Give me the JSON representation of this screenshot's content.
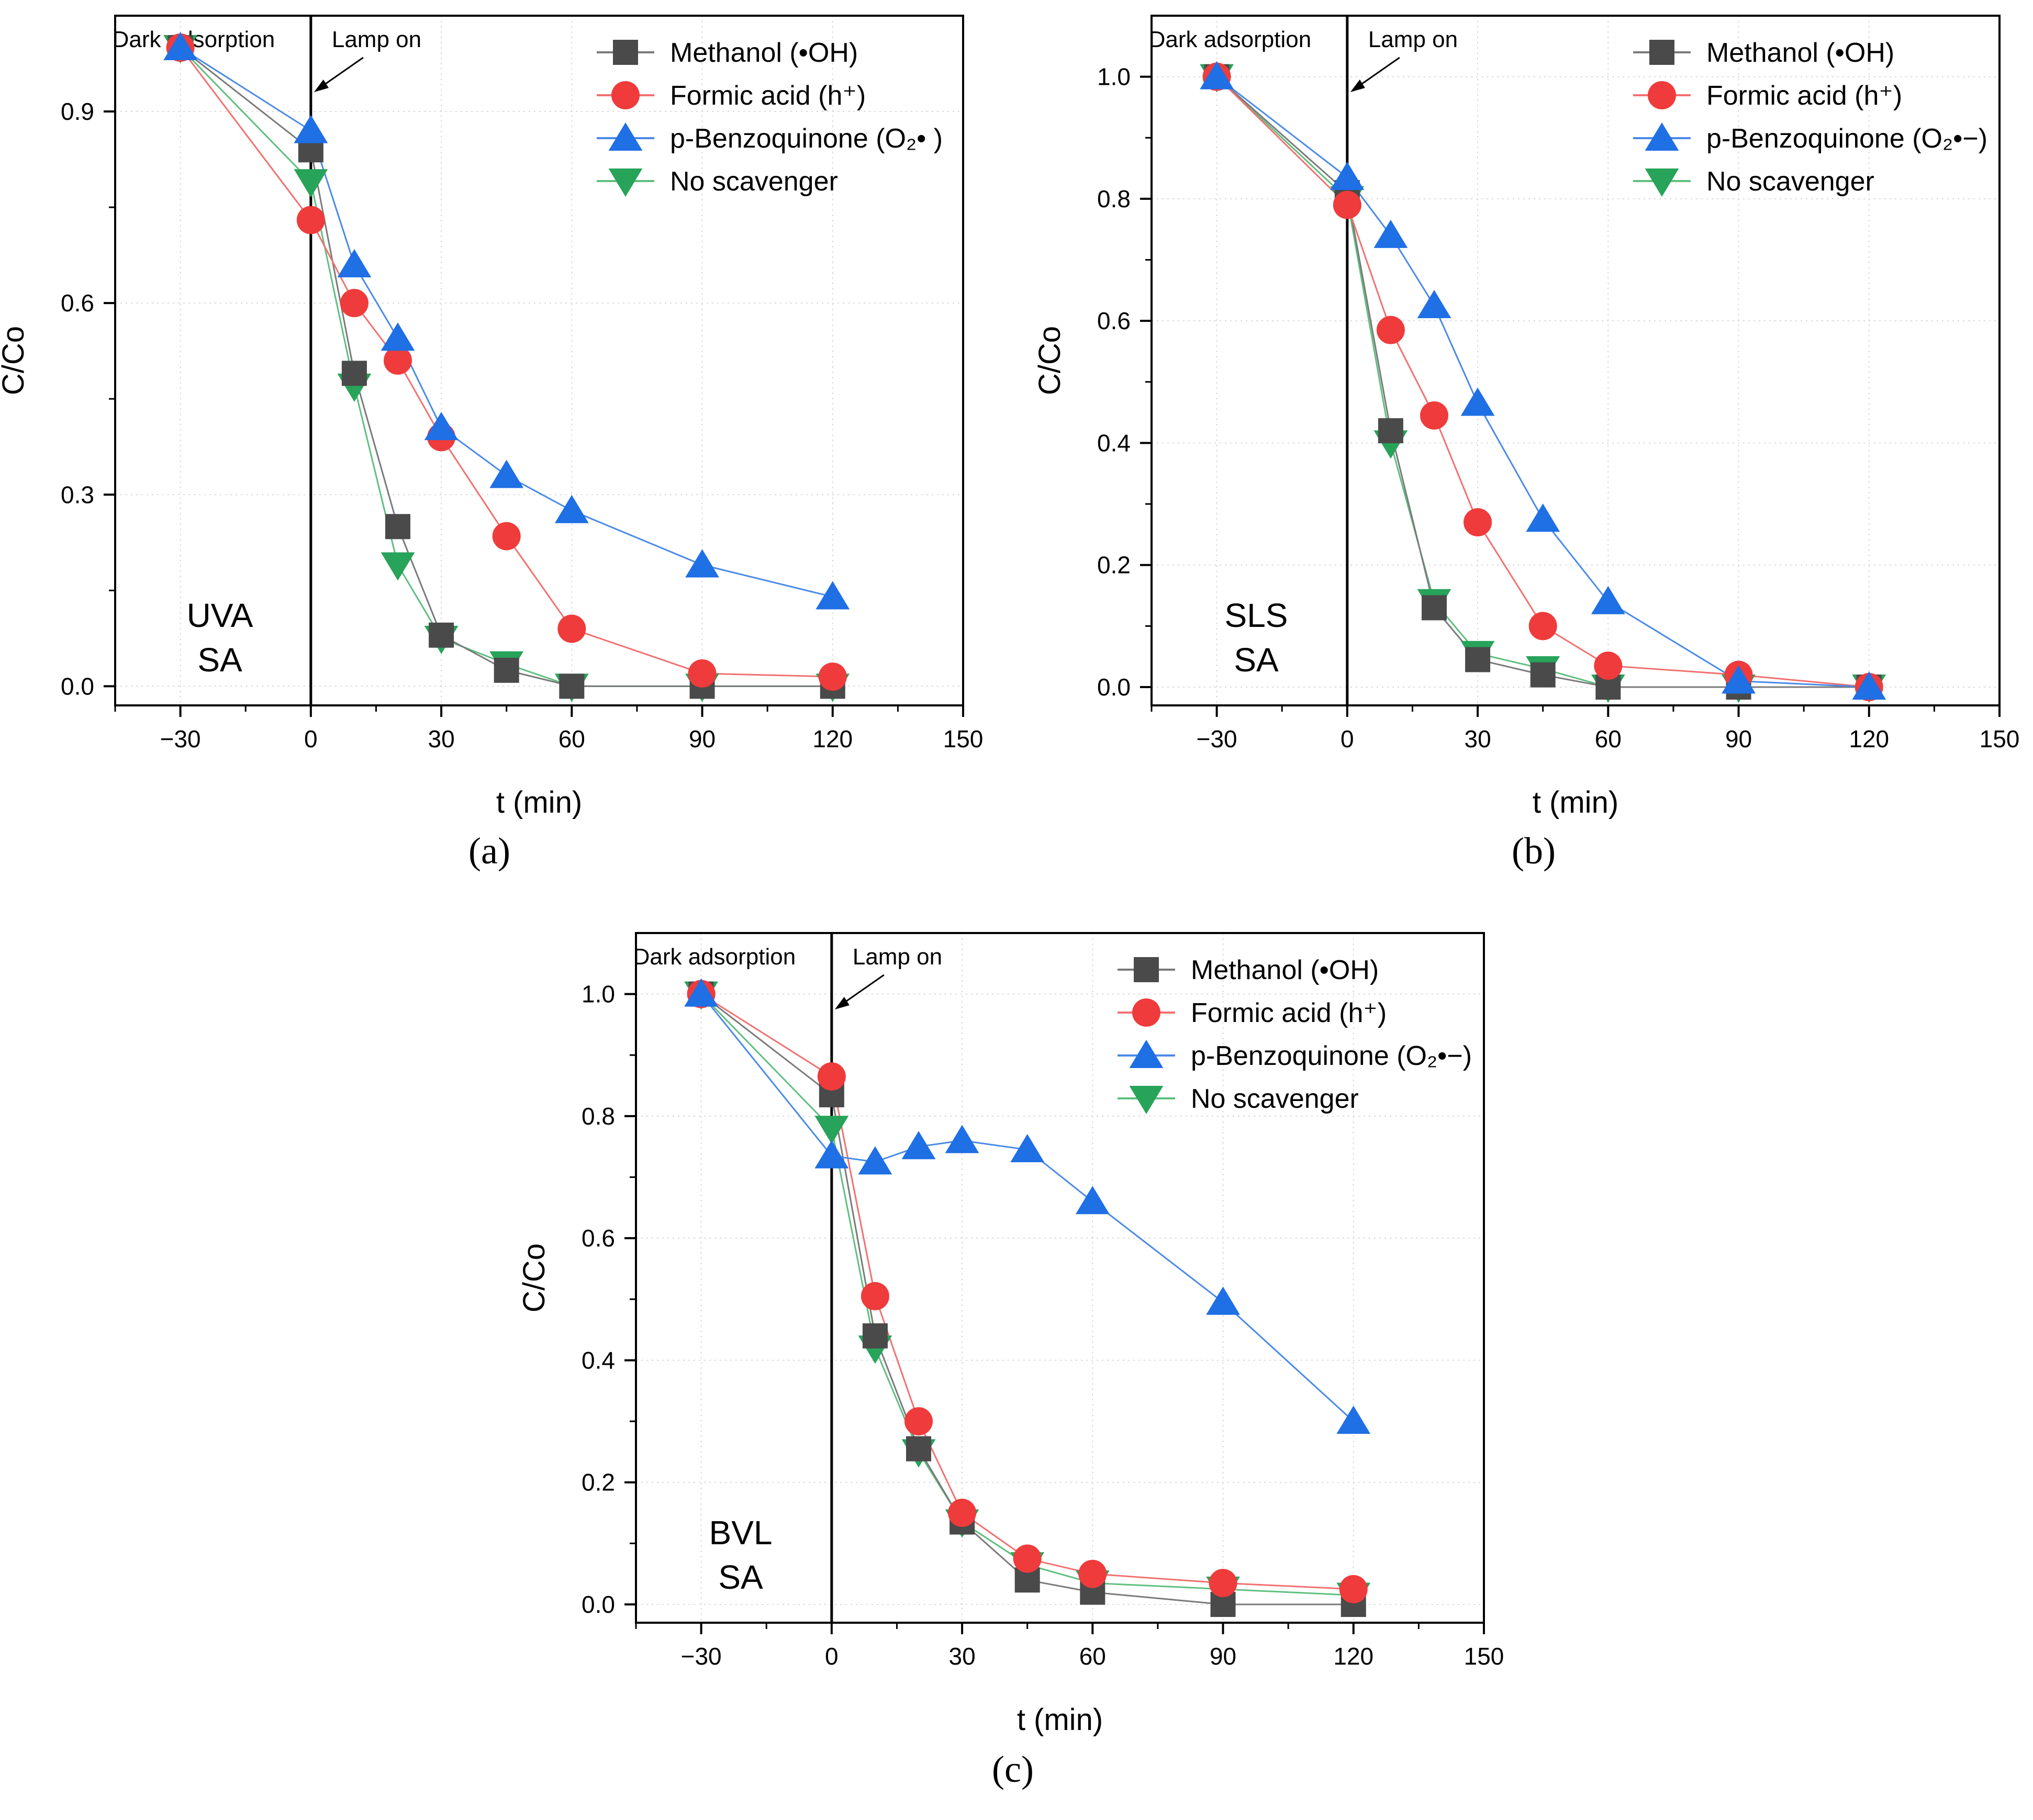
{
  "colors": {
    "methanol": "#4a4a4a",
    "formic": "#ef3b3b",
    "benzoquinone": "#1f6fe5",
    "none": "#27a35a",
    "methanol_line": "#7a7a7a",
    "formic_line": "#f27070",
    "benzoquinone_line": "#4a8ae8",
    "none_line": "#5fbf80"
  },
  "chart_data": [
    {
      "id": "a",
      "type": "line",
      "panel_label": "a",
      "condition": [
        "UVA",
        "SA"
      ],
      "xlabel": "t (min)",
      "ylabel": "C/Co",
      "xlim": [
        -45,
        150
      ],
      "ylim": [
        -0.03,
        1.05
      ],
      "xticks": [
        -30,
        0,
        30,
        60,
        90,
        120,
        150
      ],
      "xtick_labels": [
        "−30",
        "0",
        "30",
        "60",
        "90",
        "120",
        "150"
      ],
      "yticks": [
        0.0,
        0.3,
        0.6,
        0.9
      ],
      "ytick_labels": [
        "0.0",
        "0.3",
        "0.6",
        "0.9"
      ],
      "annotations": {
        "dark": "Dark adsorption",
        "lamp": "Lamp on"
      },
      "x": [
        -30,
        0,
        10,
        20,
        30,
        45,
        60,
        90,
        120
      ],
      "series": [
        {
          "key": "methanol",
          "marker": "square",
          "name": "Methanol (•OH)",
          "values": [
            1.0,
            0.84,
            0.49,
            0.25,
            0.08,
            0.025,
            0.0,
            0.0,
            0.0
          ]
        },
        {
          "key": "formic",
          "marker": "circle",
          "name": "Formic acid (h⁺)",
          "values": [
            1.0,
            0.73,
            0.6,
            0.51,
            0.39,
            0.235,
            0.09,
            0.02,
            0.015
          ]
        },
        {
          "key": "benzoquinone",
          "marker": "triangle-up",
          "name": "p-Benzoquinone (O₂• )",
          "values": [
            1.0,
            0.87,
            0.66,
            0.545,
            0.405,
            0.33,
            0.275,
            0.19,
            0.14
          ]
        },
        {
          "key": "none",
          "marker": "triangle-down",
          "name": "No scavenger",
          "values": [
            1.0,
            0.79,
            0.47,
            0.19,
            0.075,
            0.035,
            0.0,
            0.0,
            0.0
          ]
        }
      ]
    },
    {
      "id": "b",
      "type": "line",
      "panel_label": "b",
      "condition": [
        "SLS",
        "SA"
      ],
      "xlabel": "t (min)",
      "ylabel": "C/Co",
      "xlim": [
        -45,
        150
      ],
      "ylim": [
        -0.03,
        1.1
      ],
      "xticks": [
        -30,
        0,
        30,
        60,
        90,
        120,
        150
      ],
      "xtick_labels": [
        "−30",
        "0",
        "30",
        "60",
        "90",
        "120",
        "150"
      ],
      "yticks": [
        0.0,
        0.2,
        0.4,
        0.6,
        0.8,
        1.0
      ],
      "ytick_labels": [
        "0.0",
        "0.2",
        "0.4",
        "0.6",
        "0.8",
        "1.0"
      ],
      "annotations": {
        "dark": "Dark adsorption",
        "lamp": "Lamp on"
      },
      "x": [
        -30,
        0,
        10,
        20,
        30,
        45,
        60,
        90,
        120
      ],
      "series": [
        {
          "key": "methanol",
          "marker": "square",
          "name": "Methanol (•OH)",
          "values": [
            1.0,
            0.81,
            0.42,
            0.13,
            0.045,
            0.02,
            0.0,
            0.0,
            0.0
          ]
        },
        {
          "key": "formic",
          "marker": "circle",
          "name": "Formic acid (h⁺)",
          "values": [
            1.0,
            0.79,
            0.585,
            0.445,
            0.27,
            0.1,
            0.035,
            0.02,
            0.0
          ]
        },
        {
          "key": "benzoquinone",
          "marker": "triangle-up",
          "name": "p-Benzoquinone (O₂•−)",
          "values": [
            1.0,
            0.835,
            0.74,
            0.625,
            0.465,
            0.275,
            0.14,
            0.01,
            0.0
          ]
        },
        {
          "key": "none",
          "marker": "triangle-down",
          "name": "No scavenger",
          "values": [
            1.0,
            0.8,
            0.4,
            0.14,
            0.055,
            0.03,
            0.0,
            0.0,
            0.0
          ]
        }
      ]
    },
    {
      "id": "c",
      "type": "line",
      "panel_label": "c",
      "condition": [
        "BVL",
        "SA"
      ],
      "xlabel": "t (min)",
      "ylabel": "C/Co",
      "xlim": [
        -45,
        150
      ],
      "ylim": [
        -0.03,
        1.1
      ],
      "xticks": [
        -30,
        0,
        30,
        60,
        90,
        120,
        150
      ],
      "xtick_labels": [
        "−30",
        "0",
        "30",
        "60",
        "90",
        "120",
        "150"
      ],
      "yticks": [
        0.0,
        0.2,
        0.4,
        0.6,
        0.8,
        1.0
      ],
      "ytick_labels": [
        "0.0",
        "0.2",
        "0.4",
        "0.6",
        "0.8",
        "1.0"
      ],
      "annotations": {
        "dark": "Dark adsorption",
        "lamp": "Lamp on"
      },
      "x": [
        -30,
        0,
        10,
        20,
        30,
        45,
        60,
        90,
        120
      ],
      "series": [
        {
          "key": "methanol",
          "marker": "square",
          "name": "Methanol (•OH)",
          "values": [
            1.0,
            0.835,
            0.44,
            0.255,
            0.135,
            0.04,
            0.02,
            0.0,
            0.0
          ]
        },
        {
          "key": "formic",
          "marker": "circle",
          "name": "Formic acid (h⁺)",
          "values": [
            1.0,
            0.865,
            0.505,
            0.3,
            0.15,
            0.075,
            0.05,
            0.035,
            0.025
          ]
        },
        {
          "key": "benzoquinone",
          "marker": "triangle-up",
          "name": "p-Benzoquinone (O₂•−)",
          "values": [
            1.0,
            0.735,
            0.725,
            0.75,
            0.76,
            0.745,
            0.66,
            0.495,
            0.3
          ]
        },
        {
          "key": "none",
          "marker": "triangle-down",
          "name": "No scavenger",
          "values": [
            1.0,
            0.78,
            0.42,
            0.25,
            0.135,
            0.065,
            0.035,
            0.025,
            0.015
          ]
        }
      ]
    }
  ]
}
